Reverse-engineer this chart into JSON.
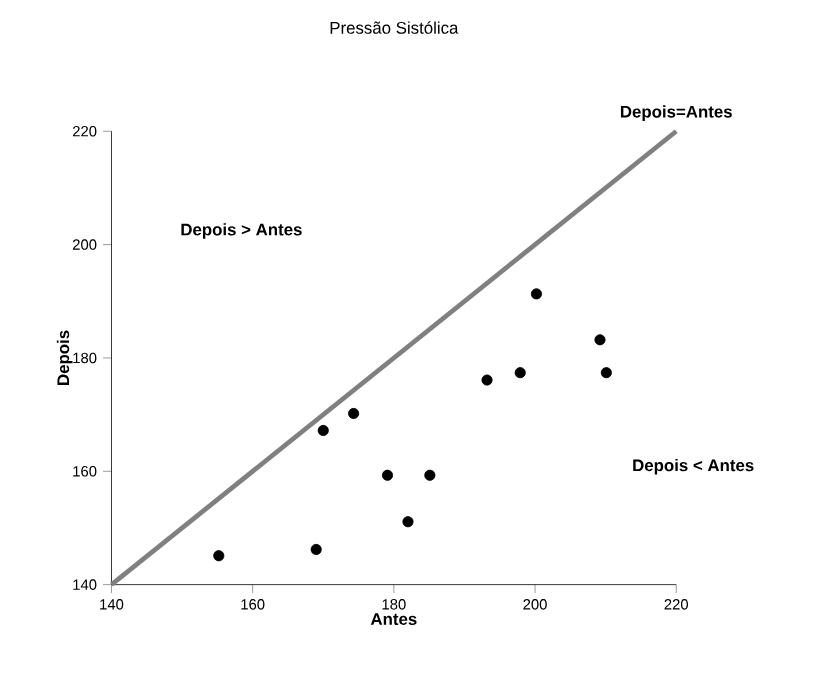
{
  "chart_data": {
    "type": "scatter",
    "title": "Pressão Sistólica",
    "xlabel": "Antes",
    "ylabel": "Depois",
    "xlim": [
      140,
      220
    ],
    "xticks": [
      140,
      160,
      180,
      200,
      220
    ],
    "ylim": [
      140,
      220
    ],
    "yticks": [
      140,
      160,
      180,
      200,
      220
    ],
    "series": [
      {
        "color": "#000000",
        "marker": "circle",
        "x": [
          155.2,
          169.0,
          170.0,
          174.3,
          179.1,
          182.0,
          185.1,
          193.2,
          197.9,
          200.2,
          209.2,
          210.1
        ],
        "values": [
          145.1,
          146.2,
          167.2,
          170.2,
          159.3,
          151.1,
          159.3,
          176.1,
          177.4,
          191.3,
          183.2,
          177.4
        ]
      },
      {
        "type": "line",
        "color": "#808080",
        "marker": "none",
        "line_style": "solid",
        "x": [
          140,
          220
        ],
        "values": [
          140,
          220
        ]
      }
    ],
    "annotations": [
      "Depois=Antes",
      "Depois > Antes",
      "Depois < Antes"
    ]
  }
}
